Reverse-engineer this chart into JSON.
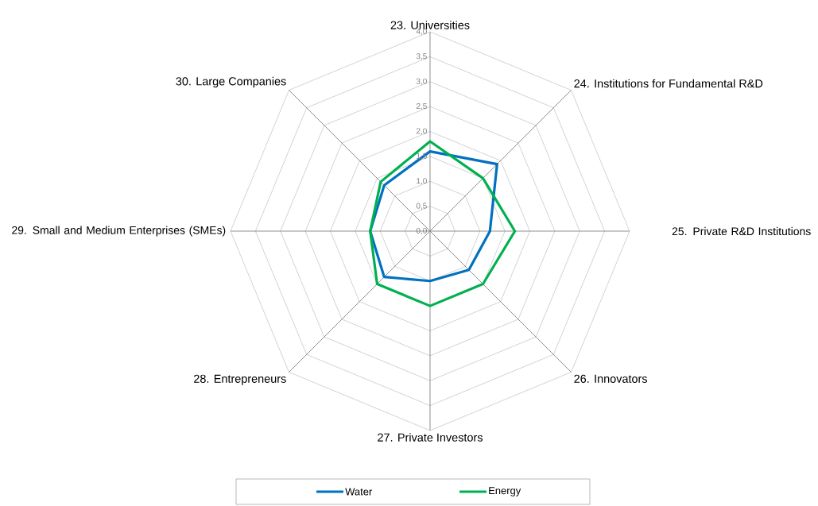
{
  "chart_data": {
    "type": "radar",
    "categories": [
      "23. Universities",
      "24. Institutions for Fundamental R&D",
      "25. Private R&D Institutions",
      "26. Innovators",
      "27. Private Investors",
      "28. Entrepreneurs",
      "29. Small and Medium Enterprises (SMEs)",
      "30. Large Companies"
    ],
    "series": [
      {
        "name": "Water",
        "color": "#0070c0",
        "values": [
          1.6,
          1.9,
          1.2,
          1.1,
          1.0,
          1.3,
          1.2,
          1.3
        ]
      },
      {
        "name": "Energy",
        "color": "#00b050",
        "values": [
          1.8,
          1.5,
          1.7,
          1.5,
          1.5,
          1.5,
          1.2,
          1.4
        ]
      }
    ],
    "ylim": [
      0,
      4
    ],
    "yticks": [
      {
        "value": 0,
        "label": "0,0"
      },
      {
        "value": 0.5,
        "label": "0,5"
      },
      {
        "value": 1,
        "label": "1,0"
      },
      {
        "value": 1.5,
        "label": "1,5"
      },
      {
        "value": 2,
        "label": "2,0"
      },
      {
        "value": 2.5,
        "label": "2,5"
      },
      {
        "value": 3,
        "label": "3,0"
      },
      {
        "value": 3.5,
        "label": "3,5"
      },
      {
        "value": 4,
        "label": "4,0"
      }
    ],
    "grid": true,
    "legend": "bottom",
    "marker": "none"
  }
}
